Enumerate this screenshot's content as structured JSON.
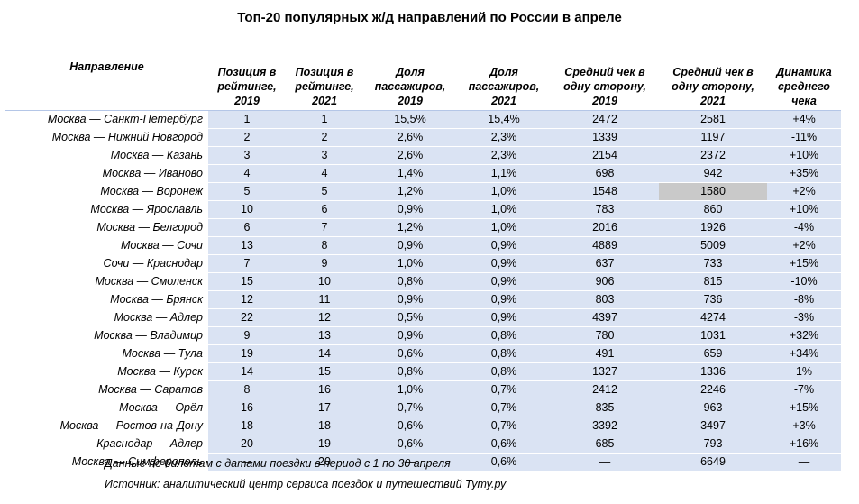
{
  "title": "Топ-20 популярных ж/д направлений по России в апреле",
  "columns": [
    "Направление",
    "Позиция в рейтинге, 2019",
    "Позиция в рейтинге, 2021",
    "Доля пассажиров, 2019",
    "Доля пассажиров, 2021",
    "Средний чек в одну сторону, 2019",
    "Средний чек в одну сторону, 2021",
    "Динамика среднего чека"
  ],
  "rows": [
    [
      "Москва — Санкт-Петербург",
      "1",
      "1",
      "15,5%",
      "15,4%",
      "2472",
      "2581",
      "+4%"
    ],
    [
      "Москва — Нижний Новгород",
      "2",
      "2",
      "2,6%",
      "2,3%",
      "1339",
      "1197",
      "-11%"
    ],
    [
      "Москва — Казань",
      "3",
      "3",
      "2,6%",
      "2,3%",
      "2154",
      "2372",
      "+10%"
    ],
    [
      "Москва — Иваново",
      "4",
      "4",
      "1,4%",
      "1,1%",
      "698",
      "942",
      "+35%"
    ],
    [
      "Москва — Воронеж",
      "5",
      "5",
      "1,2%",
      "1,0%",
      "1548",
      "1580",
      "+2%"
    ],
    [
      "Москва — Ярославль",
      "10",
      "6",
      "0,9%",
      "1,0%",
      "783",
      "860",
      "+10%"
    ],
    [
      "Москва — Белгород",
      "6",
      "7",
      "1,2%",
      "1,0%",
      "2016",
      "1926",
      "-4%"
    ],
    [
      "Москва — Сочи",
      "13",
      "8",
      "0,9%",
      "0,9%",
      "4889",
      "5009",
      "+2%"
    ],
    [
      "Сочи — Краснодар",
      "7",
      "9",
      "1,0%",
      "0,9%",
      "637",
      "733",
      "+15%"
    ],
    [
      "Москва — Смоленск",
      "15",
      "10",
      "0,8%",
      "0,9%",
      "906",
      "815",
      "-10%"
    ],
    [
      "Москва — Брянск",
      "12",
      "11",
      "0,9%",
      "0,9%",
      "803",
      "736",
      "-8%"
    ],
    [
      "Москва — Адлер",
      "22",
      "12",
      "0,5%",
      "0,9%",
      "4397",
      "4274",
      "-3%"
    ],
    [
      "Москва — Владимир",
      "9",
      "13",
      "0,9%",
      "0,8%",
      "780",
      "1031",
      "+32%"
    ],
    [
      "Москва — Тула",
      "19",
      "14",
      "0,6%",
      "0,8%",
      "491",
      "659",
      "+34%"
    ],
    [
      "Москва — Курск",
      "14",
      "15",
      "0,8%",
      "0,8%",
      "1327",
      "1336",
      "1%"
    ],
    [
      "Москва — Саратов",
      "8",
      "16",
      "1,0%",
      "0,7%",
      "2412",
      "2246",
      "-7%"
    ],
    [
      "Москва — Орёл",
      "16",
      "17",
      "0,7%",
      "0,7%",
      "835",
      "963",
      "+15%"
    ],
    [
      "Москва — Ростов-на-Дону",
      "18",
      "18",
      "0,6%",
      "0,7%",
      "3392",
      "3497",
      "+3%"
    ],
    [
      "Краснодар — Адлер",
      "20",
      "19",
      "0,6%",
      "0,6%",
      "685",
      "793",
      "+16%"
    ],
    [
      "Москва — Симферополь",
      "—",
      "20",
      "—",
      "0,6%",
      "—",
      "6649",
      "—"
    ]
  ],
  "notes": [
    "Данные по билетам с датами поездки в период с 1 по 30 апреля",
    "Источник: аналитический центр сервиса поездок и путешествий Туту.ру"
  ],
  "colors": {
    "band": "#dae3f3",
    "selected_cell": "#c9c9c9"
  }
}
